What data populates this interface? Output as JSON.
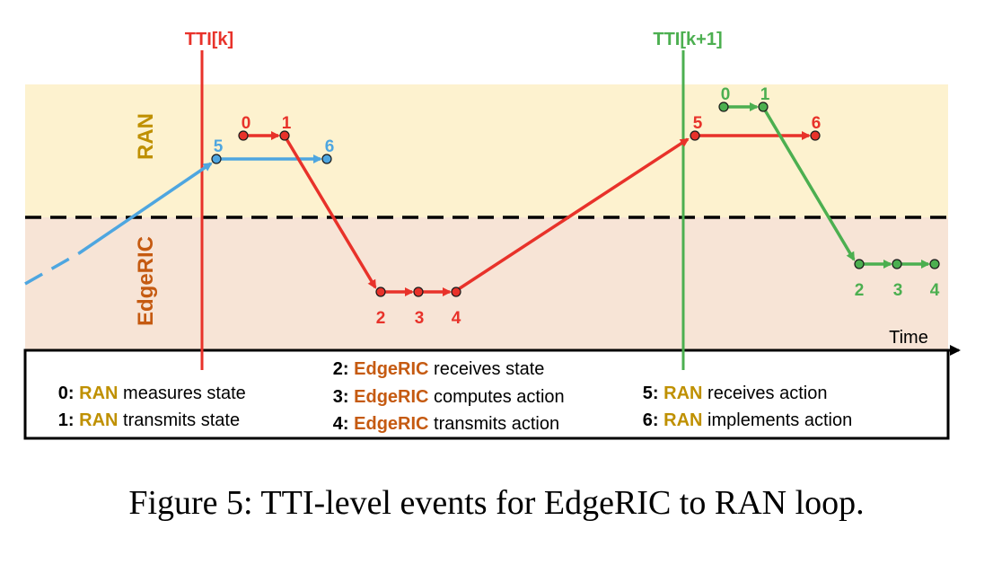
{
  "zones": {
    "ran_label": "RAN",
    "edgeric_label": "EdgeRIC"
  },
  "markers": {
    "tti_k": "TTI[k]",
    "tti_k1": "TTI[k+1]"
  },
  "axis": {
    "time_label": "Time"
  },
  "events": {
    "blue": {
      "e5": "5",
      "e6": "6"
    },
    "red": {
      "e0": "0",
      "e1": "1",
      "e2": "2",
      "e3": "3",
      "e4": "4",
      "e5": "5",
      "e6": "6"
    },
    "green": {
      "e0": "0",
      "e1": "1",
      "e2": "2",
      "e3": "3",
      "e4": "4"
    }
  },
  "legend": {
    "item0": {
      "num": "0",
      "sep": ": ",
      "entity": "RAN",
      "text": " measures state"
    },
    "item1": {
      "num": "1",
      "sep": ": ",
      "entity": "RAN",
      "text": " transmits state"
    },
    "item2": {
      "num": "2",
      "sep": ": ",
      "entity": "EdgeRIC",
      "text": " receives state"
    },
    "item3": {
      "num": "3",
      "sep": ": ",
      "entity": "EdgeRIC",
      "text": " computes action"
    },
    "item4": {
      "num": "4",
      "sep": ": ",
      "entity": "EdgeRIC",
      "text": " transmits action"
    },
    "item5": {
      "num": "5",
      "sep": ": ",
      "entity": "RAN",
      "text": " receives action"
    },
    "item6": {
      "num": "6",
      "sep": ": ",
      "entity": "RAN",
      "text": " implements action"
    }
  },
  "caption": "Figure 5: TTI-level events for EdgeRIC to RAN loop.",
  "colors": {
    "ran_zone": "#fdf2cf",
    "edgeric_zone": "#f7e4d6",
    "ran_text": "#bf9000",
    "edgeric_text": "#c55a11",
    "red": "#e8322a",
    "blue": "#4ea6e0",
    "green": "#4caf50"
  }
}
